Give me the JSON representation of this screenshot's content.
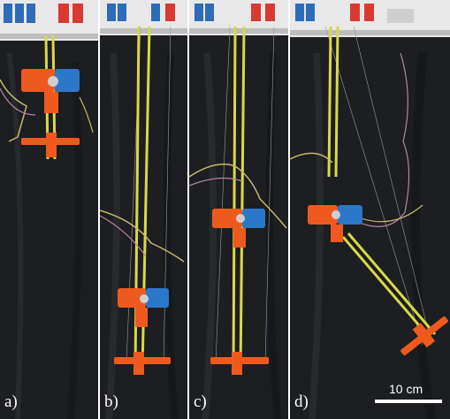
{
  "figure": {
    "panels": [
      {
        "label": "a)"
      },
      {
        "label": "b)"
      },
      {
        "label": "c)"
      },
      {
        "label": "d)"
      }
    ],
    "scale_bar": {
      "text": "10 cm"
    },
    "colors": {
      "backdrop": "#1b1d20",
      "rod": "#d8d84a",
      "body": "#ee5a1e",
      "module": "#2c78c8",
      "frame": "#e9e9e9",
      "actuator_red": "#d83a32",
      "actuator_blue": "#2e6bb8"
    }
  }
}
